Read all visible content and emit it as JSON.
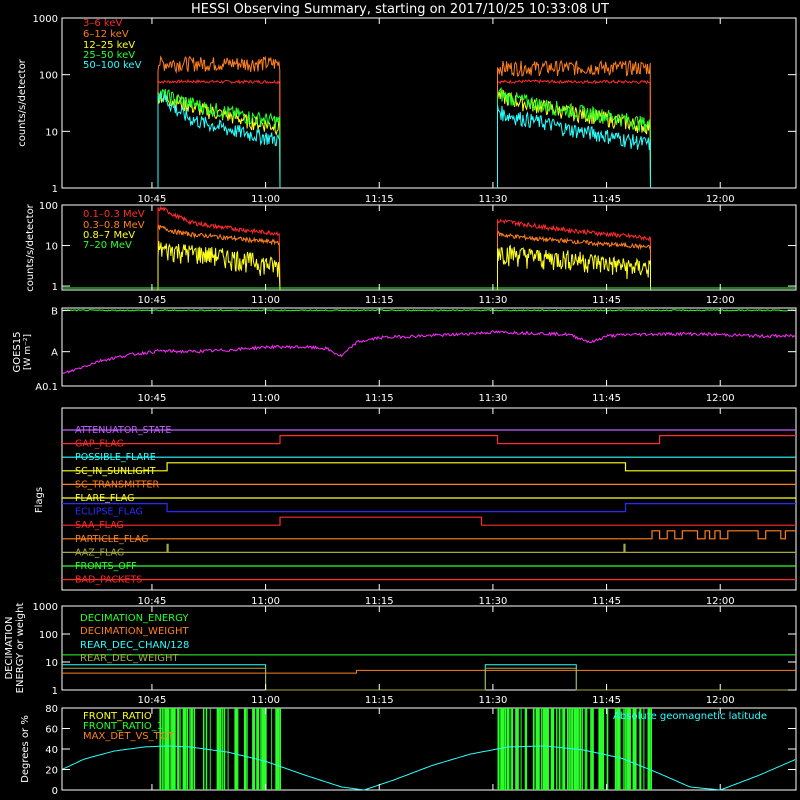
{
  "title": "HESSI Observing Summary, starting on 2017/10/25 10:33:08 UT",
  "colors": {
    "background": "#000000",
    "axis": "#ffffff",
    "red": "#ff2a2a",
    "orange": "#ff7f1e",
    "yellow": "#ffff1e",
    "green": "#2aff2a",
    "cyan": "#2affff",
    "magenta": "#ff2aff",
    "blue": "#2a2aff",
    "olive": "#a8a840",
    "pink": "#ff6b6b",
    "violet": "#c060ff"
  },
  "time_axis": {
    "tick_labels": [
      "10:45",
      "11:00",
      "11:15",
      "11:30",
      "11:45",
      "12:00"
    ],
    "tick_minutes": [
      45,
      60,
      75,
      90,
      105,
      120
    ]
  },
  "panels": {
    "lightcurve_low": {
      "ylabel": "counts/s/detector",
      "y_ticks": [
        "1",
        "10",
        "100",
        "1000"
      ],
      "legend": [
        "3–6 keV",
        "6–12 keV",
        "12–25 keV",
        "25–50 keV",
        "50–100 keV"
      ]
    },
    "lightcurve_high": {
      "ylabel": "counts/s/detector",
      "y_ticks": [
        "1",
        "10",
        "100"
      ],
      "legend": [
        "0.1–0.3 MeV",
        "0.3–0.8 MeV",
        "0.8–7 MeV",
        "7–20 MeV"
      ]
    },
    "goes": {
      "ylabel_1": "GOES15",
      "ylabel_2": "[W m⁻²]",
      "y_ticks": [
        "B",
        "A",
        "A0.1"
      ]
    },
    "flags": {
      "ylabel": "Flags",
      "names": [
        "ATTENUATOR_STATE",
        "GAP_FLAG",
        "POSSIBLE_FLARE",
        "SC_IN_SUNLIGHT",
        "SC_TRANSMITTER",
        "FLARE_FLAG",
        "ECLIPSE_FLAG",
        "SAA_FLAG",
        "PARTICLE_FLAG",
        "AAZ_FLAG",
        "FRONTS_OFF",
        "BAD_PACKETS"
      ]
    },
    "decimation": {
      "ylabel_1": "DECIMATION",
      "ylabel_2": "ENERGY or weight",
      "y_ticks": [
        "1",
        "10",
        "100",
        "1000"
      ],
      "legend": [
        "DECIMATION_ENERGY",
        "DECIMATION_WEIGHT",
        "REAR_DEC_CHAN/128",
        "REAR_DEC_WEIGHT"
      ]
    },
    "ratio": {
      "ylabel": "Degrees or %",
      "y_ticks": [
        "0",
        "20",
        "40",
        "60",
        "80"
      ],
      "legend": [
        "FRONT_RATIO",
        "FRONT_RATIO_1",
        "MAX_DET_VS_TOT"
      ],
      "right_label": "Absolute geomagnetic latitude"
    }
  },
  "chart_data": [
    {
      "type": "line",
      "title": "HESSI Observing Summary, starting on 2017/10/25 10:33:08 UT",
      "xlabel": "",
      "ylabel": "counts/s/detector",
      "yscale": "log",
      "ylim": [
        1,
        1000
      ],
      "x_unit": "minutes after 10:00 UT",
      "xlim": [
        33.13,
        130
      ],
      "series": [
        {
          "name": "3–6 keV",
          "color": "#ff2a2a",
          "x": [
            45.8,
            46.5,
            50,
            55,
            60,
            61.9,
            90.6,
            91.5,
            95,
            100,
            105,
            110,
            110.8
          ],
          "y": [
            75,
            75,
            76,
            75,
            75,
            75,
            75,
            75,
            76,
            75,
            75,
            74,
            74
          ]
        },
        {
          "name": "6–12 keV",
          "color": "#ff7f1e",
          "x": [
            45.8,
            46.5,
            50,
            55,
            60,
            61.9,
            90.6,
            91.5,
            95,
            100,
            105,
            110,
            110.8
          ],
          "y": [
            160,
            160,
            160,
            160,
            160,
            158,
            135,
            135,
            135,
            135,
            135,
            135,
            135
          ]
        },
        {
          "name": "12–25 keV",
          "color": "#ffff1e",
          "x": [
            45.8,
            46.5,
            48,
            50,
            52,
            55,
            58,
            61.9,
            90.6,
            91.5,
            94,
            97,
            100,
            104,
            108,
            110.8
          ],
          "y": [
            45,
            40,
            35,
            28,
            24,
            19,
            15,
            12,
            45,
            40,
            32,
            27,
            22,
            18,
            14,
            12
          ]
        },
        {
          "name": "25–50 keV",
          "color": "#2aff2a",
          "x": [
            45.8,
            46.5,
            48,
            50,
            52,
            55,
            58,
            61.9,
            90.6,
            91.5,
            94,
            97,
            100,
            104,
            108,
            110.8
          ],
          "y": [
            50,
            45,
            38,
            32,
            27,
            22,
            18,
            15,
            50,
            42,
            35,
            29,
            24,
            20,
            16,
            13
          ]
        },
        {
          "name": "50–100 keV",
          "color": "#2affff",
          "x": [
            45.8,
            46.5,
            48,
            50,
            52,
            55,
            58,
            61.9,
            90.6,
            91.5,
            94,
            97,
            100,
            104,
            108,
            110.8
          ],
          "y": [
            55,
            40,
            25,
            17,
            14,
            11,
            9,
            7,
            25,
            20,
            17,
            14,
            11,
            9,
            7,
            6
          ]
        }
      ]
    },
    {
      "type": "line",
      "xlabel": "",
      "ylabel": "counts/s/detector",
      "yscale": "log",
      "ylim": [
        0.8,
        100
      ],
      "x_unit": "minutes after 10:00 UT",
      "series": [
        {
          "name": "0.1–0.3 MeV",
          "color": "#ff2a2a",
          "x": [
            45.8,
            46.5,
            48,
            50,
            53,
            56,
            59,
            61.9,
            90.6,
            91.5,
            94,
            97,
            100,
            104,
            108,
            110.8
          ],
          "y": [
            80,
            80,
            55,
            38,
            30,
            26,
            22,
            20,
            40,
            40,
            34,
            28,
            24,
            20,
            17,
            15
          ]
        },
        {
          "name": "0.3–0.8 MeV",
          "color": "#ff7f1e",
          "x": [
            45.8,
            46.5,
            48,
            50,
            53,
            56,
            59,
            61.9,
            90.6,
            91.5,
            94,
            97,
            100,
            104,
            108,
            110.8
          ],
          "y": [
            28,
            27,
            22,
            19,
            17,
            15,
            13,
            12,
            20,
            18,
            16,
            14,
            13,
            11,
            10,
            9
          ]
        },
        {
          "name": "0.8–7 MeV",
          "color": "#ffff1e",
          "x": [
            45.8,
            46.5,
            48,
            50,
            53,
            56,
            59,
            61.9,
            90.6,
            91.5,
            94,
            97,
            100,
            104,
            108,
            110.8
          ],
          "y": [
            9,
            8,
            8,
            7,
            6,
            5,
            4,
            3,
            8,
            7,
            6,
            5,
            5,
            4,
            3,
            3
          ]
        },
        {
          "name": "7–20 MeV",
          "color": "#2aff2a",
          "x": [
            33.13,
            130
          ],
          "y": [
            0.8,
            0.8
          ]
        }
      ]
    },
    {
      "type": "line",
      "ylabel": "GOES15 [W m⁻²]",
      "x_unit": "minutes after 10:00 UT",
      "series": [
        {
          "color": "#2aff2a",
          "x": [
            33.13,
            130
          ],
          "y": [
            0.97,
            0.97
          ]
        },
        {
          "color": "#ff2aff",
          "x": [
            33.13,
            36,
            38,
            42,
            46,
            50,
            55,
            60,
            65,
            68,
            70,
            72,
            75,
            80,
            85,
            90,
            95,
            100,
            103,
            105,
            108,
            115,
            120,
            125,
            130
          ],
          "y": [
            0.15,
            0.25,
            0.32,
            0.4,
            0.45,
            0.44,
            0.46,
            0.5,
            0.5,
            0.48,
            0.38,
            0.56,
            0.62,
            0.64,
            0.66,
            0.69,
            0.68,
            0.66,
            0.56,
            0.64,
            0.66,
            0.67,
            0.66,
            0.64,
            0.64
          ]
        }
      ]
    },
    {
      "type": "line",
      "ylabel": "DECIMATION ENERGY or weight",
      "yscale": "log",
      "ylim": [
        1,
        1000
      ],
      "x_unit": "minutes after 10:00 UT",
      "series": [
        {
          "name": "DECIMATION_ENERGY",
          "color": "#2aff2a",
          "x": [
            33.13,
            130
          ],
          "y": [
            18,
            18
          ]
        },
        {
          "name": "DECIMATION_WEIGHT",
          "color": "#ff7f1e",
          "x": [
            33.13,
            72,
            72,
            130
          ],
          "y": [
            4,
            4,
            5,
            5
          ]
        },
        {
          "name": "REAR_DEC_CHAN/128",
          "color": "#2affff",
          "x": [
            33.13,
            60,
            60,
            89,
            89,
            101,
            101,
            130
          ],
          "y": [
            8,
            8,
            1,
            1,
            8,
            8,
            1,
            1
          ]
        },
        {
          "name": "REAR_DEC_WEIGHT",
          "color": "#a8a840",
          "x": [
            33.13,
            60,
            60,
            89,
            89,
            101,
            101,
            130
          ],
          "y": [
            6,
            6,
            1,
            1,
            6,
            6,
            1,
            1
          ]
        }
      ]
    },
    {
      "type": "line",
      "ylabel": "Degrees or %",
      "ylim": [
        0,
        80
      ],
      "x_unit": "minutes after 10:00 UT",
      "series": [
        {
          "name": "Absolute geomagnetic latitude",
          "color": "#2affff",
          "x": [
            33.13,
            36,
            40,
            44,
            47,
            50,
            55,
            60,
            65,
            70,
            73,
            77,
            82,
            87,
            92,
            97,
            102,
            107,
            112,
            116,
            120,
            125,
            130
          ],
          "y": [
            20,
            30,
            38,
            42,
            43,
            42,
            37,
            28,
            15,
            3,
            0,
            10,
            24,
            35,
            42,
            43,
            39,
            31,
            16,
            3,
            0,
            14,
            30
          ]
        }
      ]
    }
  ]
}
